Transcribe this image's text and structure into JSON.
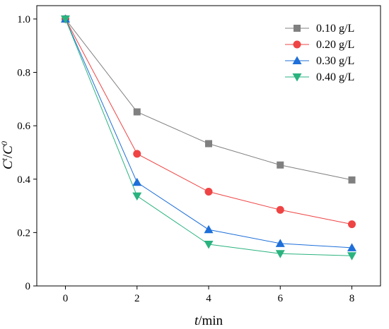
{
  "chart_data": {
    "type": "line",
    "title": "",
    "xlabel": {
      "var": "t",
      "unit": "/min"
    },
    "ylabel": {
      "base1": "C",
      "sup1": "t",
      "sep": "/",
      "base2": "C",
      "sup2": "0"
    },
    "xlim": [
      -0.8,
      8.8
    ],
    "ylim": [
      0,
      1.05
    ],
    "xticks": [
      0,
      2,
      4,
      6,
      8
    ],
    "xtick_labels": [
      "0",
      "2",
      "4",
      "6",
      "8"
    ],
    "yticks": [
      0,
      0.2,
      0.4,
      0.6,
      0.8,
      1.0
    ],
    "ytick_labels": [
      "0",
      "0.2",
      "0.4",
      "0.6",
      "0.8",
      "1.0"
    ],
    "grid": false,
    "legend_position": "top-right",
    "x": [
      0,
      2,
      4,
      6,
      8
    ],
    "series": [
      {
        "name": "0.10 g/L",
        "marker": "square",
        "color": "#808080",
        "values": [
          1.0,
          0.652,
          0.533,
          0.453,
          0.397
        ]
      },
      {
        "name": "0.20 g/L",
        "marker": "circle",
        "color": "#ef4444",
        "values": [
          1.0,
          0.495,
          0.353,
          0.285,
          0.231
        ]
      },
      {
        "name": "0.30 g/L",
        "marker": "triangle-up",
        "color": "#1e6fd9",
        "values": [
          1.0,
          0.388,
          0.211,
          0.159,
          0.143
        ]
      },
      {
        "name": "0.40 g/L",
        "marker": "triangle-down",
        "color": "#2ab37f",
        "values": [
          1.0,
          0.337,
          0.156,
          0.121,
          0.113
        ]
      }
    ]
  }
}
